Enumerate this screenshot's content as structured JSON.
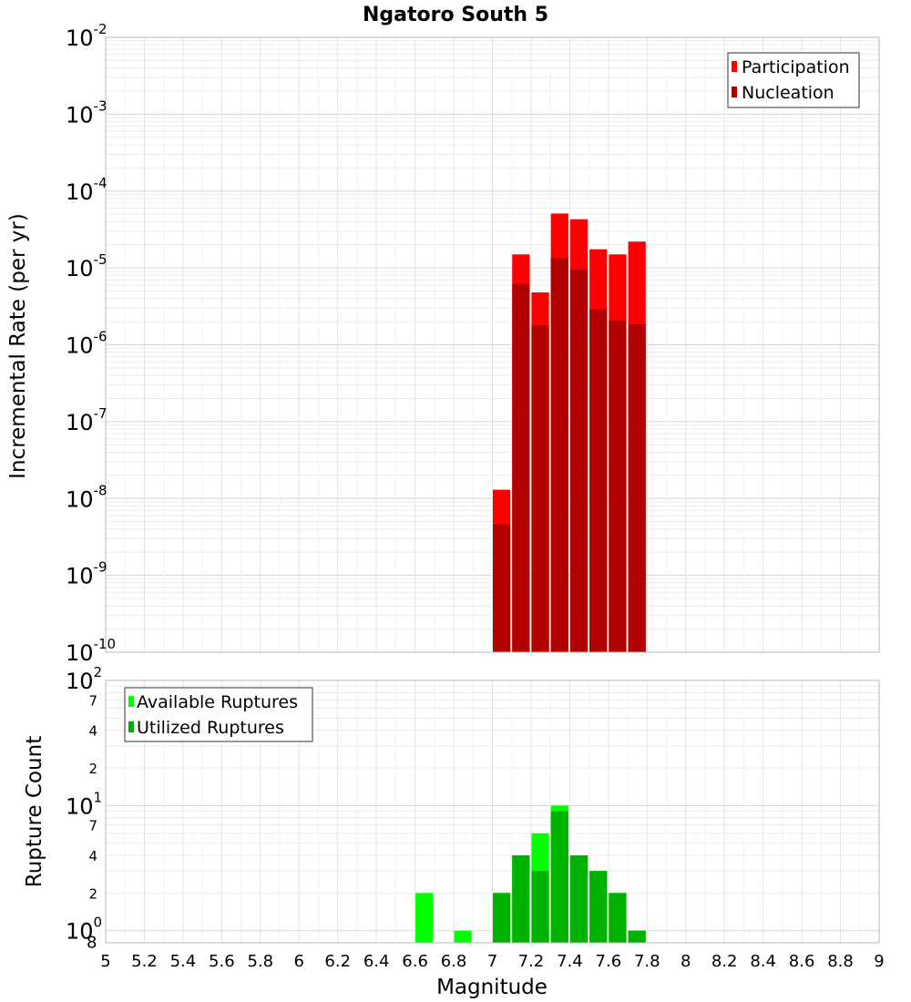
{
  "chart_data": [
    {
      "type": "bar",
      "title": "Ngatoro South 5",
      "ylabel": "Incremental Rate (per yr)",
      "xlabel": "",
      "yscale": "log",
      "ylim": [
        1e-10,
        0.01
      ],
      "xlim": [
        5,
        9
      ],
      "grid": true,
      "legend_position": "top-right",
      "x": [
        7.0,
        7.1,
        7.2,
        7.3,
        7.4,
        7.5,
        7.6,
        7.7
      ],
      "series": [
        {
          "name": "Participation",
          "color": "#ff0000",
          "values": [
            1.3e-08,
            1.5e-05,
            4.8e-06,
            5.1e-05,
            4.3e-05,
            1.75e-05,
            1.5e-05,
            2.2e-05
          ]
        },
        {
          "name": "Nucleation",
          "color": "#b20000",
          "values": [
            4.6e-09,
            6.2e-06,
            1.8e-06,
            1.35e-05,
            9.5e-06,
            2.9e-06,
            2.05e-06,
            1.85e-06
          ]
        }
      ],
      "y_tick_labels": [
        {
          "base": "10",
          "exp": "-10"
        },
        {
          "base": "10",
          "exp": "-9"
        },
        {
          "base": "10",
          "exp": "-8"
        },
        {
          "base": "10",
          "exp": "-7"
        },
        {
          "base": "10",
          "exp": "-6"
        },
        {
          "base": "10",
          "exp": "-5"
        },
        {
          "base": "10",
          "exp": "-4"
        },
        {
          "base": "10",
          "exp": "-3"
        },
        {
          "base": "10",
          "exp": "-2"
        }
      ]
    },
    {
      "type": "bar",
      "title": "",
      "xlabel": "Magnitude",
      "ylabel": "Rupture Count",
      "yscale": "log",
      "ylim": [
        0.8,
        100
      ],
      "xlim": [
        5,
        9
      ],
      "grid": true,
      "legend_position": "top-left",
      "x": [
        6.6,
        6.8,
        7.0,
        7.1,
        7.2,
        7.3,
        7.4,
        7.5,
        7.6,
        7.7
      ],
      "series": [
        {
          "name": "Available Ruptures",
          "color": "#00ff00",
          "values": [
            2,
            1,
            2,
            4,
            6,
            10,
            4,
            3,
            2,
            1
          ]
        },
        {
          "name": "Utilized Ruptures",
          "color": "#00b200",
          "values": [
            0,
            0,
            2,
            4,
            3,
            9,
            4,
            3,
            2,
            1
          ]
        }
      ],
      "x_tick_labels": [
        "5",
        "5.2",
        "5.4",
        "5.6",
        "5.8",
        "6",
        "6.2",
        "6.4",
        "6.6",
        "6.8",
        "7",
        "7.2",
        "7.4",
        "7.6",
        "7.8",
        "8",
        "8.2",
        "8.4",
        "8.6",
        "8.8",
        "9"
      ],
      "y_major_labels": [
        {
          "base": "10",
          "exp": "0",
          "extra": "8"
        },
        {
          "base": "10",
          "exp": "1"
        },
        {
          "base": "10",
          "exp": "2"
        }
      ],
      "y_minor_labels": [
        "2",
        "4",
        "7",
        "2",
        "4",
        "7"
      ]
    }
  ]
}
